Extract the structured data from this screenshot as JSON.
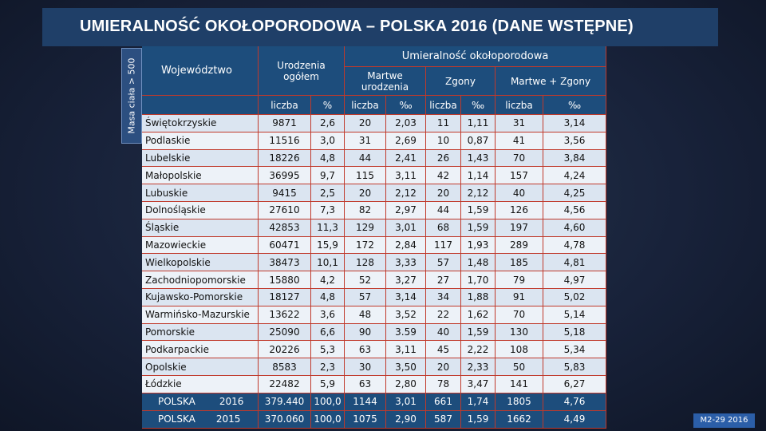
{
  "title": "UMIERALNOŚĆ OKOŁOPORODOWA – POLSKA 2016 (DANE WSTĘPNE)",
  "side_label": "Masa ciała > 500",
  "header": {
    "wojewodztwo": "Województwo",
    "urodzenia": "Urodzenia ogółem",
    "umieralnosc": "Umieralność okołoporodowa",
    "martwe": "Martwe urodzenia",
    "zgony": "Zgony",
    "martwe_zgony": "Martwe + Zgony",
    "liczba": "liczba",
    "percent": "%",
    "permille": "‰"
  },
  "rows": [
    {
      "name": "Świętokrzyskie",
      "ur": "9871",
      "pct": "2,6",
      "m": "20",
      "mp": "2,03",
      "z": "11",
      "zp": "1,11",
      "mz": "31",
      "mzp": "3,14"
    },
    {
      "name": "Podlaskie",
      "ur": "11516",
      "pct": "3,0",
      "m": "31",
      "mp": "2,69",
      "z": "10",
      "zp": "0,87",
      "mz": "41",
      "mzp": "3,56"
    },
    {
      "name": "Lubelskie",
      "ur": "18226",
      "pct": "4,8",
      "m": "44",
      "mp": "2,41",
      "z": "26",
      "zp": "1,43",
      "mz": "70",
      "mzp": "3,84"
    },
    {
      "name": "Małopolskie",
      "ur": "36995",
      "pct": "9,7",
      "m": "115",
      "mp": "3,11",
      "z": "42",
      "zp": "1,14",
      "mz": "157",
      "mzp": "4,24"
    },
    {
      "name": "Lubuskie",
      "ur": "9415",
      "pct": "2,5",
      "m": "20",
      "mp": "2,12",
      "z": "20",
      "zp": "2,12",
      "mz": "40",
      "mzp": "4,25"
    },
    {
      "name": "Dolnośląskie",
      "ur": "27610",
      "pct": "7,3",
      "m": "82",
      "mp": "2,97",
      "z": "44",
      "zp": "1,59",
      "mz": "126",
      "mzp": "4,56"
    },
    {
      "name": "Śląskie",
      "ur": "42853",
      "pct": "11,3",
      "m": "129",
      "mp": "3,01",
      "z": "68",
      "zp": "1,59",
      "mz": "197",
      "mzp": "4,60"
    },
    {
      "name": "Mazowieckie",
      "ur": "60471",
      "pct": "15,9",
      "m": "172",
      "mp": "2,84",
      "z": "117",
      "zp": "1,93",
      "mz": "289",
      "mzp": "4,78"
    },
    {
      "name": "Wielkopolskie",
      "ur": "38473",
      "pct": "10,1",
      "m": "128",
      "mp": "3,33",
      "z": "57",
      "zp": "1,48",
      "mz": "185",
      "mzp": "4,81"
    },
    {
      "name": "Zachodniopomorskie",
      "ur": "15880",
      "pct": "4,2",
      "m": "52",
      "mp": "3,27",
      "z": "27",
      "zp": "1,70",
      "mz": "79",
      "mzp": "4,97"
    },
    {
      "name": "Kujawsko-Pomorskie",
      "ur": "18127",
      "pct": "4,8",
      "m": "57",
      "mp": "3,14",
      "z": "34",
      "zp": "1,88",
      "mz": "91",
      "mzp": "5,02"
    },
    {
      "name": "Warmińsko-Mazurskie",
      "ur": "13622",
      "pct": "3,6",
      "m": "48",
      "mp": "3,52",
      "z": "22",
      "zp": "1,62",
      "mz": "70",
      "mzp": "5,14"
    },
    {
      "name": "Pomorskie",
      "ur": "25090",
      "pct": "6,6",
      "m": "90",
      "mp": "3.59",
      "z": "40",
      "zp": "1,59",
      "mz": "130",
      "mzp": "5,18"
    },
    {
      "name": "Podkarpackie",
      "ur": "20226",
      "pct": "5,3",
      "m": "63",
      "mp": "3,11",
      "z": "45",
      "zp": "2,22",
      "mz": "108",
      "mzp": "5,34"
    },
    {
      "name": "Opolskie",
      "ur": "8583",
      "pct": "2,3",
      "m": "30",
      "mp": "3,50",
      "z": "20",
      "zp": "2,33",
      "mz": "50",
      "mzp": "5,83"
    },
    {
      "name": "Łódzkie",
      "ur": "22482",
      "pct": "5,9",
      "m": "63",
      "mp": "2,80",
      "z": "78",
      "zp": "3,47",
      "mz": "141",
      "mzp": "6,27"
    }
  ],
  "totals": [
    {
      "name": "POLSKA",
      "year": "2016",
      "ur": "379.440",
      "pct": "100,0",
      "m": "1144",
      "mp": "3,01",
      "z": "661",
      "zp": "1,74",
      "mz": "1805",
      "mzp": "4,76"
    },
    {
      "name": "POLSKA",
      "year": "2015",
      "ur": "370.060",
      "pct": "100,0",
      "m": "1075",
      "mp": "2,90",
      "z": "587",
      "zp": "1,59",
      "mz": "1662",
      "mzp": "4,49"
    }
  ],
  "badge": "M2-29 2016"
}
